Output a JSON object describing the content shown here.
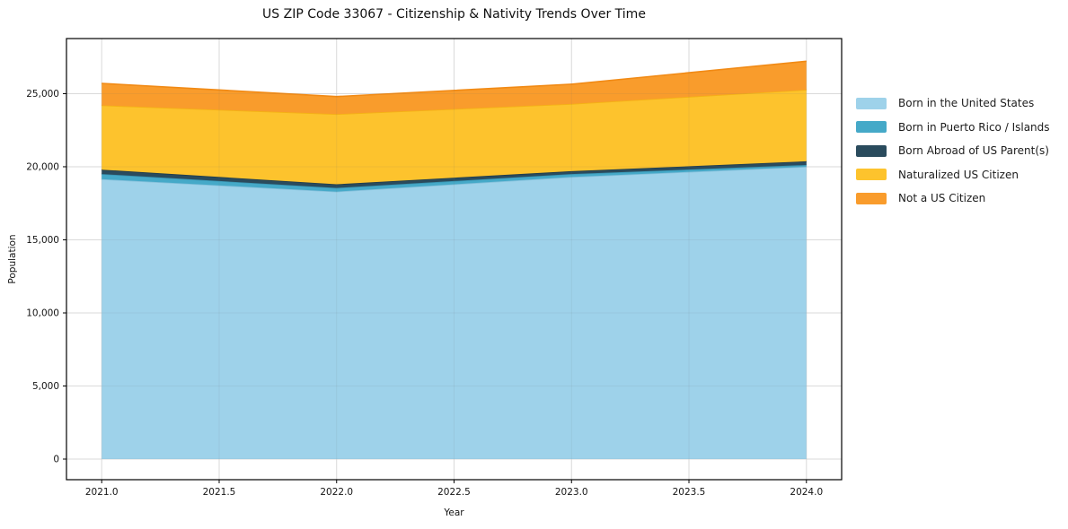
{
  "title": "US ZIP Code 33067 - Citizenship & Nativity Trends Over Time",
  "chart_data": {
    "type": "area",
    "stacked": true,
    "title": "US ZIP Code 33067 - Citizenship & Nativity Trends Over Time",
    "xlabel": "Year",
    "ylabel": "Population",
    "x": [
      2021,
      2022,
      2023,
      2024
    ],
    "series": [
      {
        "name": "Born in the United States",
        "values": [
          19150,
          18300,
          19300,
          20000
        ],
        "color": "#9ED2EA",
        "edge": "#85C0DB"
      },
      {
        "name": "Born in Puerto Rico / Islands",
        "values": [
          350,
          250,
          200,
          120
        ],
        "color": "#45A9C8",
        "edge": "#3995B3"
      },
      {
        "name": "Born Abroad of US Parent(s)",
        "values": [
          300,
          250,
          200,
          250
        ],
        "color": "#2A4B5D",
        "edge": "#213D4C"
      },
      {
        "name": "Naturalized US Citizen",
        "values": [
          4400,
          4800,
          4600,
          4900
        ],
        "color": "#FDC32D",
        "edge": "#F4B214"
      },
      {
        "name": "Not a US Citizen",
        "values": [
          1500,
          1200,
          1350,
          1950
        ],
        "color": "#F99C2C",
        "edge": "#F18A15"
      }
    ],
    "x_tick_labels": [
      "2021.0",
      "2021.5",
      "2022.0",
      "2022.5",
      "2023.0",
      "2023.5",
      "2024.0"
    ],
    "y_tick_values": [
      0,
      5000,
      10000,
      15000,
      20000,
      25000
    ],
    "y_tick_labels": [
      "0",
      "5,000",
      "10,000",
      "15,000",
      "20,000",
      "25,000"
    ],
    "xlim": [
      2020.85,
      2024.15
    ],
    "ylim": [
      -1410,
      28770
    ],
    "grid": true,
    "legend_position": "right",
    "grid_color": "#e7e7e7",
    "spine_color": "#000000",
    "tick_color": "#141414"
  }
}
